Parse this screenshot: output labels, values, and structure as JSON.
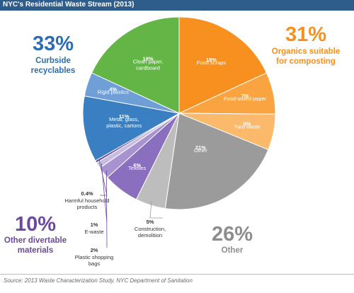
{
  "header": {
    "title": "NYC's Residential Waste Stream (2013)"
  },
  "footer": {
    "source": "Source: 2013 Waste Characterization Study, NYC Department of Sanitation"
  },
  "colors": {
    "title_bar": "#2e5d8c",
    "organics": "#f7901e",
    "recyclables_green": "#63b545",
    "recyclables_blue": "#3a7fc1",
    "other": "#9b9b9b",
    "divertable": "#6b4a9e"
  },
  "groups": [
    {
      "id": "organics",
      "percent": "31%",
      "label_line1": "Organics suitable",
      "label_line2": "for composting",
      "color": "#f7901e"
    },
    {
      "id": "recyclables",
      "percent": "33%",
      "label_line1": "Curbside",
      "label_line2": "recyclables",
      "color": "#2a6db4"
    },
    {
      "id": "other",
      "percent": "26%",
      "label_line1": "Other",
      "label_line2": "",
      "color": "#8d8d8d"
    },
    {
      "id": "divertable",
      "percent": "10%",
      "label_line1": "Other divertable",
      "label_line2": "materials",
      "color": "#6b4a9e"
    }
  ],
  "chart_data": {
    "type": "pie",
    "title": "NYC's Residential Waste Stream (2013)",
    "slices": [
      {
        "category": "Food scraps",
        "value": 18,
        "label": "18%",
        "group": "organics",
        "color": "#f7901e"
      },
      {
        "category": "Food-soiled paper",
        "value": 7,
        "label": "7%",
        "group": "organics",
        "color": "#f9a441"
      },
      {
        "category": "Yard waste",
        "value": 6,
        "label": "6%",
        "group": "organics",
        "color": "#fbba6b"
      },
      {
        "category": "Other",
        "value": 21,
        "label": "21%",
        "group": "other",
        "color": "#9b9b9b"
      },
      {
        "category": "Construction, demolition",
        "value": 5,
        "label": "5%",
        "group": "other",
        "color": "#bdbdbd"
      },
      {
        "category": "Textiles",
        "value": 6,
        "label": "6%",
        "group": "divertable",
        "color": "#8a6fbe"
      },
      {
        "category": "Plastic shopping bags",
        "value": 2,
        "label": "2%",
        "group": "divertable",
        "color": "#a893d0"
      },
      {
        "category": "E-waste",
        "value": 1,
        "label": "1%",
        "group": "divertable",
        "color": "#c8bce3"
      },
      {
        "category": "Harmful household products",
        "value": 0.4,
        "label": "0.4%",
        "group": "divertable",
        "color": "#6b4a9e"
      },
      {
        "category": "Metal, glass, plastic, cartons",
        "value": 11,
        "label": "11%",
        "group": "recyclables",
        "color": "#3a7fc1"
      },
      {
        "category": "Rigid plastics",
        "value": 4,
        "label": "4%",
        "group": "recyclables",
        "color": "#6f9fd6"
      },
      {
        "category": "Clean paper, cardboard",
        "value": 18,
        "label": "18%",
        "group": "recyclables",
        "color": "#63b545"
      }
    ]
  }
}
